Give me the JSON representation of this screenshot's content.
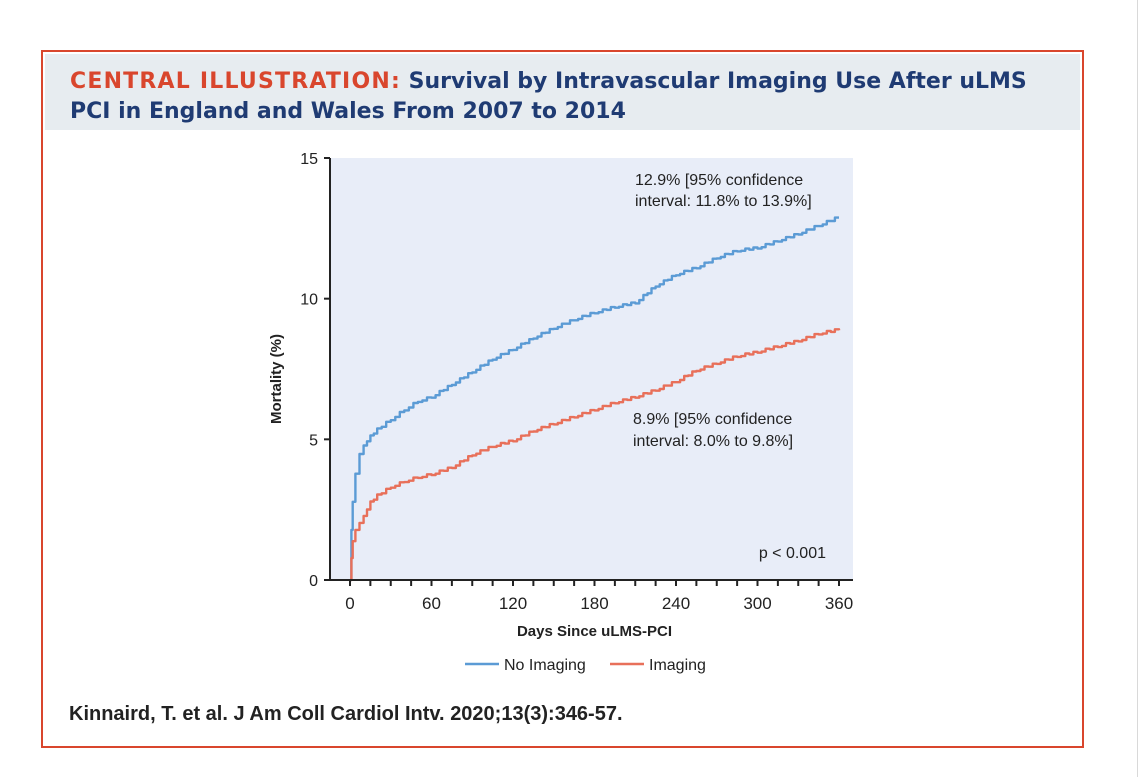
{
  "header": {
    "title_prefix": "CENTRAL ILLUSTRATION:",
    "title_main": "Survival by Intravascular Imaging Use After uLMS PCI in England and Wales From 2007 to 2014"
  },
  "citation": {
    "authors": "Kinnaird, T. et al.",
    "journal": "J Am Coll Cardiol Intv.",
    "reference": "2020;13(3):346-57."
  },
  "colors": {
    "accent": "#d9462d",
    "title": "#1f3b73",
    "header_bg": "#e7ecf0",
    "plot_bg": "#e8edf8",
    "no_imaging": "#5b9bd5",
    "imaging": "#e8705a"
  },
  "chart_data": {
    "type": "line",
    "title": "",
    "xlabel": "Days Since uLMS-PCI",
    "ylabel": "Mortality (%)",
    "xlim": [
      0,
      360
    ],
    "ylim": [
      0,
      15
    ],
    "xticks": [
      0,
      60,
      120,
      180,
      240,
      300,
      360
    ],
    "yticks": [
      0,
      5,
      10,
      15
    ],
    "grid": false,
    "legend_position": "bottom-center",
    "series": [
      {
        "name": "No Imaging",
        "color": "#5b9bd5",
        "x": [
          0,
          1,
          2,
          4,
          7,
          10,
          15,
          20,
          30,
          40,
          50,
          60,
          75,
          90,
          105,
          120,
          135,
          150,
          165,
          180,
          195,
          210,
          225,
          240,
          255,
          270,
          285,
          300,
          315,
          330,
          345,
          360
        ],
        "y": [
          0,
          1.8,
          2.8,
          3.8,
          4.5,
          4.8,
          5.1,
          5.35,
          5.7,
          6.05,
          6.35,
          6.5,
          6.95,
          7.4,
          7.85,
          8.2,
          8.6,
          8.95,
          9.25,
          9.5,
          9.7,
          9.85,
          10.45,
          10.85,
          11.1,
          11.45,
          11.7,
          11.8,
          12.05,
          12.3,
          12.6,
          12.9
        ]
      },
      {
        "name": "Imaging",
        "color": "#e8705a",
        "x": [
          0,
          1,
          2,
          4,
          7,
          10,
          15,
          20,
          30,
          40,
          50,
          60,
          75,
          90,
          105,
          120,
          135,
          150,
          165,
          180,
          195,
          210,
          225,
          240,
          255,
          270,
          285,
          300,
          315,
          330,
          345,
          360
        ],
        "y": [
          0,
          0.8,
          1.4,
          1.8,
          2.05,
          2.3,
          2.75,
          3.0,
          3.3,
          3.5,
          3.65,
          3.75,
          4.0,
          4.45,
          4.75,
          4.95,
          5.3,
          5.55,
          5.8,
          6.05,
          6.3,
          6.5,
          6.75,
          7.05,
          7.45,
          7.7,
          7.95,
          8.1,
          8.3,
          8.5,
          8.75,
          8.9
        ]
      }
    ],
    "annotations": [
      {
        "lines": [
          "12.9% [95% confidence",
          "interval: 11.8% to 13.9%]"
        ]
      },
      {
        "lines": [
          "8.9% [95% confidence",
          "interval: 8.0% to 9.8%]"
        ]
      },
      {
        "lines": [
          "p < 0.001"
        ]
      }
    ]
  }
}
